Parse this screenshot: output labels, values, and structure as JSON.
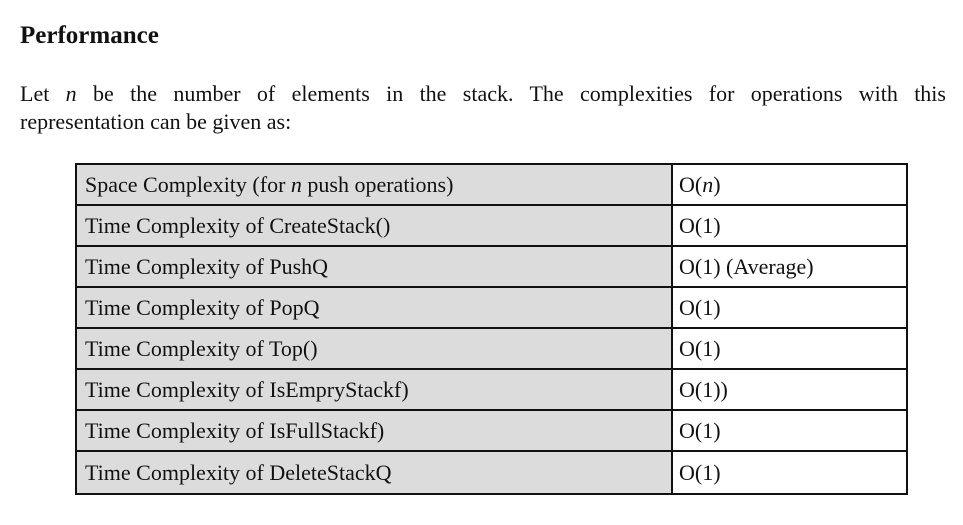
{
  "heading": "Performance",
  "intro": {
    "line1_before": "Let ",
    "variable": "n",
    "line1_after": " be the number of elements in the stack. The complexities for operations with this",
    "line2": "representation can be given as:"
  },
  "table": {
    "rows": [
      {
        "operation_before": "Space Complexity (for ",
        "operation_var": "n",
        "operation_after": " push operations)",
        "complexity_before": "O(",
        "complexity_var": "n",
        "complexity_after": ")"
      },
      {
        "operation": "Time Complexity of CreateStack()",
        "complexity": "O(1)"
      },
      {
        "operation": "Time Complexity of PushQ",
        "complexity": "O(1) (Average)"
      },
      {
        "operation": "Time Complexity of PopQ",
        "complexity": "O(1)"
      },
      {
        "operation": "Time Complexity of Top()",
        "complexity": "O(1)"
      },
      {
        "operation": "Time Complexity of IsEmpryStackf)",
        "complexity": "O(1))"
      },
      {
        "operation": "Time Complexity of IsFullStackf)",
        "complexity": "O(1)"
      },
      {
        "operation": "Time Complexity of DeleteStackQ",
        "complexity": "O(1)"
      }
    ]
  }
}
